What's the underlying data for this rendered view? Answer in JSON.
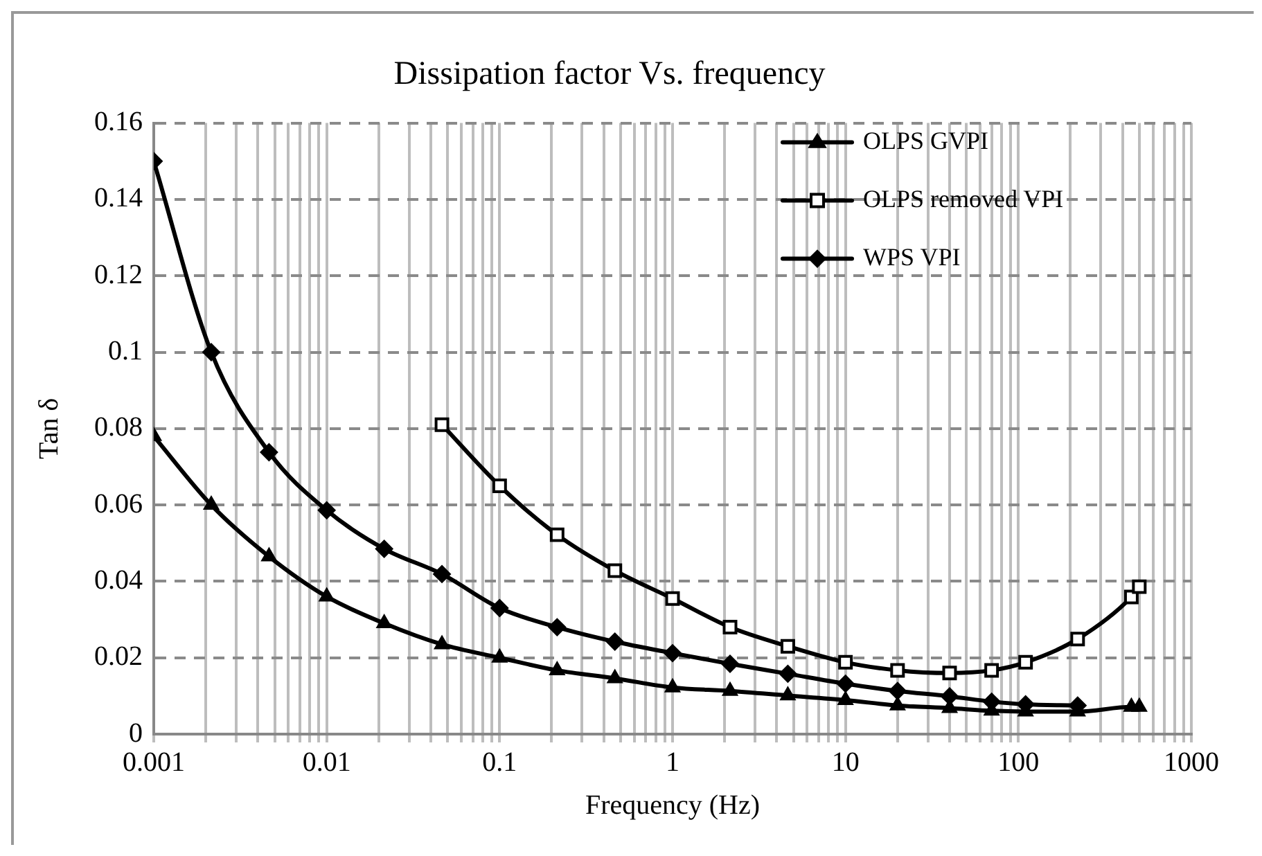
{
  "chart_data": {
    "type": "line",
    "title": "Dissipation factor Vs. frequency",
    "xlabel": "Frequency (Hz)",
    "ylabel": "Tan δ",
    "log": "x",
    "grid": true,
    "legend": "top right",
    "line_style": "solid",
    "xlim": [
      0.001,
      1000
    ],
    "ylim": [
      0,
      0.16
    ],
    "xticks": [
      0.001,
      {
        "value": 0.002,
        "label": null
      },
      {
        "value": 0.003,
        "label": null
      },
      {
        "value": 0.004,
        "label": null
      },
      {
        "value": 0.005,
        "label": null
      },
      {
        "value": 0.006,
        "label": null
      },
      {
        "value": 0.007,
        "label": null
      },
      {
        "value": 0.008,
        "label": null
      },
      {
        "value": 0.009,
        "label": null
      },
      0.01,
      {
        "value": 0.02,
        "label": null
      },
      {
        "value": 0.03,
        "label": null
      },
      {
        "value": 0.04,
        "label": null
      },
      {
        "value": 0.05,
        "label": null
      },
      {
        "value": 0.06,
        "label": null
      },
      {
        "value": 0.07,
        "label": null
      },
      {
        "value": 0.08,
        "label": null
      },
      {
        "value": 0.09,
        "label": null
      },
      0.1,
      {
        "value": 0.2,
        "label": null
      },
      {
        "value": 0.3,
        "label": null
      },
      {
        "value": 0.4,
        "label": null
      },
      {
        "value": 0.5,
        "label": null
      },
      {
        "value": 0.6,
        "label": null
      },
      {
        "value": 0.7,
        "label": null
      },
      {
        "value": 0.8,
        "label": null
      },
      {
        "value": 0.9,
        "label": null
      },
      1,
      {
        "value": 2,
        "label": null
      },
      {
        "value": 3,
        "label": null
      },
      {
        "value": 4,
        "label": null
      },
      {
        "value": 5,
        "label": null
      },
      {
        "value": 6,
        "label": null
      },
      {
        "value": 7,
        "label": null
      },
      {
        "value": 8,
        "label": null
      },
      {
        "value": 9,
        "label": null
      },
      10,
      {
        "value": 20,
        "label": null
      },
      {
        "value": 30,
        "label": null
      },
      {
        "value": 40,
        "label": null
      },
      {
        "value": 50,
        "label": null
      },
      {
        "value": 60,
        "label": null
      },
      {
        "value": 70,
        "label": null
      },
      {
        "value": 80,
        "label": null
      },
      {
        "value": 90,
        "label": null
      },
      100,
      {
        "value": 200,
        "label": null
      },
      {
        "value": 300,
        "label": null
      },
      {
        "value": 400,
        "label": null
      },
      {
        "value": 500,
        "label": null
      },
      {
        "value": 600,
        "label": null
      },
      {
        "value": 700,
        "label": null
      },
      {
        "value": 800,
        "label": null
      },
      {
        "value": 900,
        "label": null
      },
      1000
    ],
    "yticks": [
      0,
      0.02,
      0.04,
      0.06,
      0.08,
      0.1,
      0.12,
      0.14,
      0.16
    ],
    "series": [
      {
        "name": "OLPS GVPI",
        "color": "#000000",
        "marker": "triangle",
        "x": [
          0.001,
          0.00215,
          0.00464,
          0.01,
          0.0215,
          0.0464,
          0.1,
          0.215,
          0.464,
          1,
          2.15,
          4.64,
          10,
          20,
          40,
          70,
          110,
          220,
          450,
          500
        ],
        "values": [
          0.078,
          0.06,
          0.0465,
          0.036,
          0.029,
          0.0235,
          0.02,
          0.0167,
          0.0146,
          0.0122,
          0.0113,
          0.0101,
          0.0089,
          0.0075,
          0.0068,
          0.0061,
          0.0059,
          0.0059,
          0.0071,
          0.0071
        ]
      },
      {
        "name": "OLPS removed VPI",
        "color": "#000000",
        "marker": "square",
        "x": [
          0.0464,
          0.1,
          0.215,
          0.464,
          1,
          2.15,
          4.64,
          10,
          20,
          40,
          70,
          110,
          220,
          450,
          500
        ],
        "values": [
          0.081,
          0.065,
          0.0522,
          0.0428,
          0.0355,
          0.028,
          0.023,
          0.0188,
          0.0167,
          0.016,
          0.0167,
          0.0188,
          0.0249,
          0.0359,
          0.0386
        ]
      },
      {
        "name": "WPS VPI",
        "color": "#000000",
        "marker": "diamond",
        "x": [
          0.001,
          0.00215,
          0.00464,
          0.01,
          0.0215,
          0.0464,
          0.1,
          0.215,
          0.464,
          1,
          2.15,
          4.64,
          10,
          20,
          40,
          70,
          110,
          220
        ],
        "values": [
          0.15,
          0.1,
          0.0738,
          0.0586,
          0.0485,
          0.0419,
          0.033,
          0.028,
          0.0242,
          0.0212,
          0.0184,
          0.0158,
          0.0132,
          0.0113,
          0.0099,
          0.0085,
          0.0078,
          0.0075
        ]
      }
    ]
  }
}
